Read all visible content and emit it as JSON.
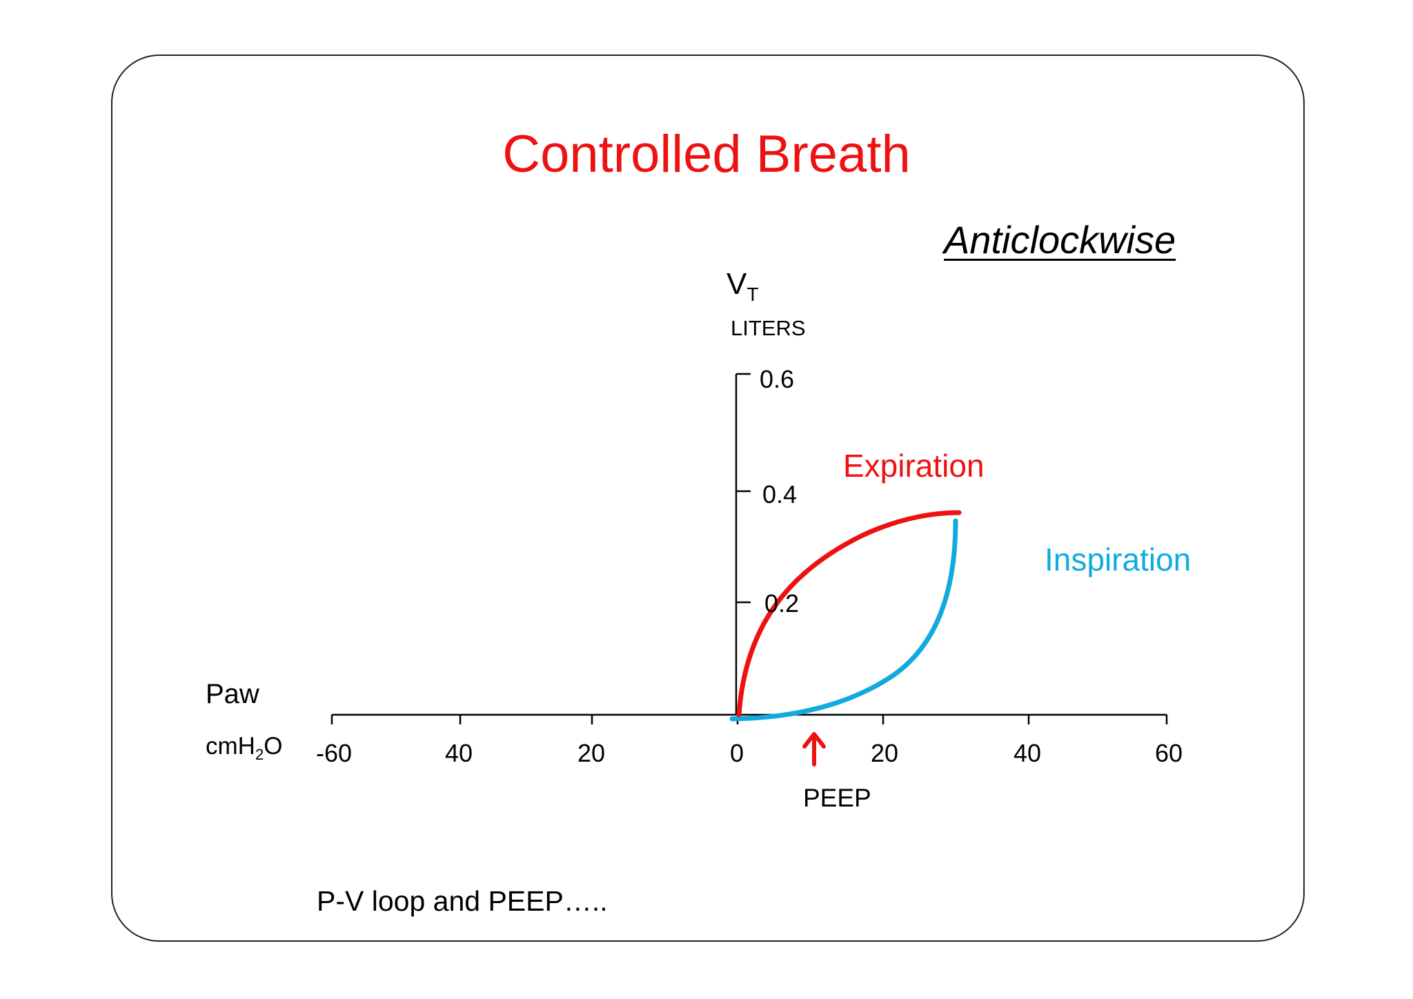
{
  "title": "Controlled Breath",
  "direction_label": "Anticlockwise",
  "y_axis": {
    "symbol": "V",
    "symbol_sub": "T",
    "unit": "LITERS",
    "ticks": [
      "0.6",
      "0.4",
      "0.2"
    ]
  },
  "x_axis": {
    "name": "Paw",
    "unit_main": "cmH",
    "unit_sub": "2",
    "unit_tail": "O",
    "ticks": [
      "-60",
      "40",
      "20",
      "0",
      "20",
      "40",
      "60"
    ]
  },
  "peep_label": "PEEP",
  "expiration_label": "Expiration",
  "inspiration_label": "Inspiration",
  "footer_text": "P-V loop and PEEP…..",
  "colors": {
    "title": "#ee1111",
    "expiration": "#ee1111",
    "inspiration": "#11aadd",
    "peep_arrow": "#ee1111",
    "axis": "#000000"
  }
}
